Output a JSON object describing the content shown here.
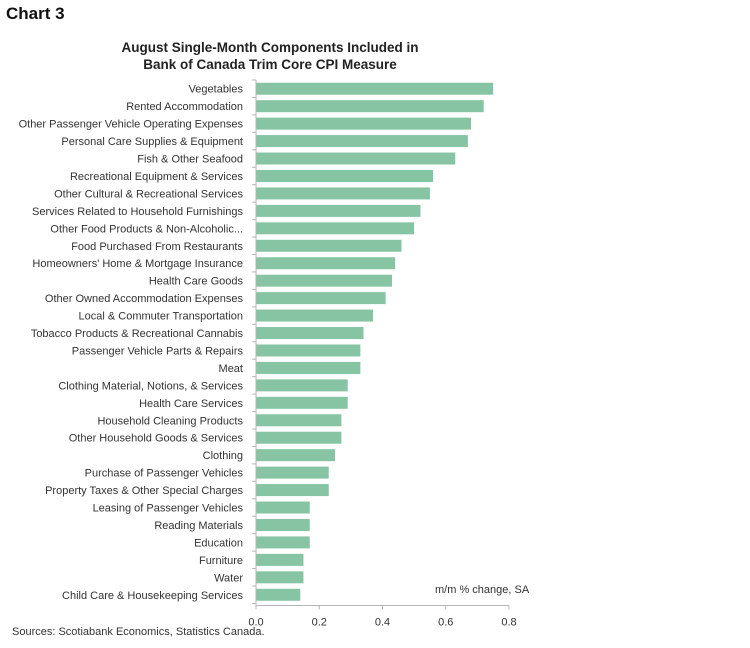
{
  "chart_label": "Chart 3",
  "source": "Sources: Scotiabank Economics, Statistics Canada.",
  "colors": {
    "bar": "#86c4a3",
    "axis": "#b5b5b5",
    "text": "#333333"
  },
  "chart_data": {
    "type": "bar",
    "orientation": "horizontal",
    "title": "August Single-Month Components Included in Bank of Canada Trim Core CPI Measure",
    "title_lines": [
      "August Single-Month Components Included in",
      "Bank of Canada Trim Core CPI Measure"
    ],
    "unit_note": "m/m % change, SA",
    "xlim": [
      0,
      0.8
    ],
    "ticks": [
      "0.0",
      "0.2",
      "0.4",
      "0.6",
      "0.8"
    ],
    "tick_values": [
      0,
      0.2,
      0.4,
      0.6,
      0.8
    ],
    "grid": false,
    "categories": [
      "Vegetables",
      "Rented Accommodation",
      "Other Passenger Vehicle Operating Expenses",
      "Personal Care Supplies & Equipment",
      "Fish & Other Seafood",
      "Recreational Equipment & Services",
      "Other Cultural & Recreational Services",
      "Services Related to Household Furnishings",
      "Other Food Products & Non-Alcoholic...",
      "Food Purchased From Restaurants",
      "Homeowners' Home & Mortgage Insurance",
      "Health Care Goods",
      "Other Owned Accommodation Expenses",
      "Local & Commuter Transportation",
      "Tobacco Products & Recreational Cannabis",
      "Passenger Vehicle Parts & Repairs",
      "Meat",
      "Clothing Material, Notions, & Services",
      "Health Care Services",
      "Household Cleaning Products",
      "Other Household Goods & Services",
      "Clothing",
      "Purchase of Passenger Vehicles",
      "Property Taxes & Other Special Charges",
      "Leasing of Passenger Vehicles",
      "Reading Materials",
      "Education",
      "Furniture",
      "Water",
      "Child Care & Housekeeping Services"
    ],
    "values": [
      0.75,
      0.72,
      0.68,
      0.67,
      0.63,
      0.56,
      0.55,
      0.52,
      0.5,
      0.46,
      0.44,
      0.43,
      0.41,
      0.37,
      0.34,
      0.33,
      0.33,
      0.29,
      0.29,
      0.27,
      0.27,
      0.25,
      0.23,
      0.23,
      0.17,
      0.17,
      0.17,
      0.15,
      0.15,
      0.14
    ]
  }
}
